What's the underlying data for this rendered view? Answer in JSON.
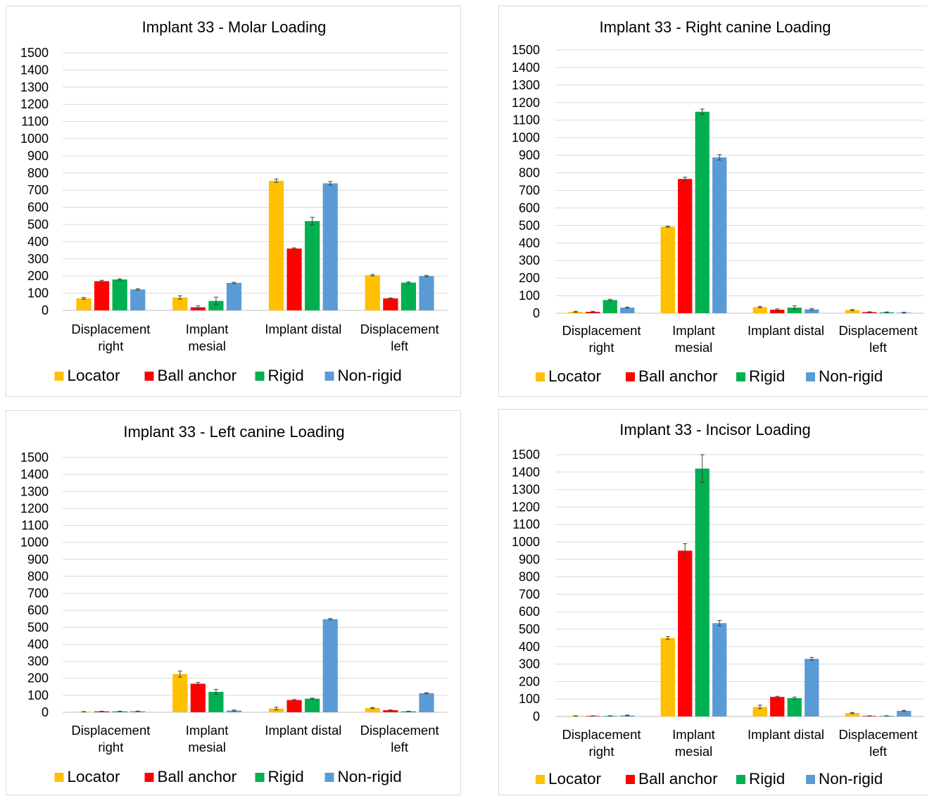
{
  "colors": {
    "Locator": "#ffc000",
    "Ball anchor": "#ff0000",
    "Rigid": "#00b050",
    "Non-rigid": "#5b9bd5"
  },
  "chart_data": [
    {
      "type": "bar",
      "title": "Implant 33 - Molar Loading",
      "categories": [
        [
          "Displacement",
          "right"
        ],
        [
          "Implant",
          "mesial"
        ],
        [
          "Implant distal"
        ],
        [
          "Displacement",
          "left"
        ]
      ],
      "ylim": [
        0,
        1500
      ],
      "yticks": [
        0,
        100,
        200,
        300,
        400,
        500,
        600,
        700,
        800,
        900,
        1000,
        1100,
        1200,
        1300,
        1400,
        1500
      ],
      "grid": true,
      "legend": "bottom",
      "series": [
        {
          "name": "Locator",
          "values": [
            70,
            75,
            755,
            205
          ],
          "errors": [
            5,
            10,
            10,
            4
          ]
        },
        {
          "name": "Ball anchor",
          "values": [
            170,
            18,
            360,
            70
          ],
          "errors": [
            5,
            8,
            4,
            3
          ]
        },
        {
          "name": "Rigid",
          "values": [
            180,
            55,
            520,
            162
          ],
          "errors": [
            4,
            22,
            22,
            5
          ]
        },
        {
          "name": "Non-rigid",
          "values": [
            122,
            160,
            740,
            200
          ],
          "errors": [
            4,
            4,
            10,
            4
          ]
        }
      ]
    },
    {
      "type": "bar",
      "title": "Implant 33 - Right canine Loading",
      "categories": [
        [
          "Displacement",
          "right"
        ],
        [
          "Implant",
          "mesial"
        ],
        [
          "Implant distal"
        ],
        [
          "Displacement",
          "left"
        ]
      ],
      "ylim": [
        0,
        1500
      ],
      "yticks": [
        0,
        100,
        200,
        300,
        400,
        500,
        600,
        700,
        800,
        900,
        1000,
        1100,
        1200,
        1300,
        1400,
        1500
      ],
      "grid": true,
      "legend": "bottom",
      "series": [
        {
          "name": "Locator",
          "values": [
            8,
            493,
            35,
            18
          ],
          "errors": [
            3,
            3,
            4,
            3
          ]
        },
        {
          "name": "Ball anchor",
          "values": [
            8,
            765,
            20,
            6
          ],
          "errors": [
            3,
            10,
            5,
            2
          ]
        },
        {
          "name": "Rigid",
          "values": [
            75,
            1148,
            32,
            5
          ],
          "errors": [
            4,
            15,
            10,
            2
          ]
        },
        {
          "name": "Non-rigid",
          "values": [
            32,
            888,
            22,
            3
          ],
          "errors": [
            3,
            15,
            5,
            2
          ]
        }
      ]
    },
    {
      "type": "bar",
      "title": "Implant 33 - Left canine Loading",
      "categories": [
        [
          "Displacement",
          "right"
        ],
        [
          "Implant",
          "mesial"
        ],
        [
          "Implant distal"
        ],
        [
          "Displacement",
          "left"
        ]
      ],
      "ylim": [
        0,
        1500
      ],
      "yticks": [
        0,
        100,
        200,
        300,
        400,
        500,
        600,
        700,
        800,
        900,
        1000,
        1100,
        1200,
        1300,
        1400,
        1500
      ],
      "grid": true,
      "legend": "bottom",
      "series": [
        {
          "name": "Locator",
          "values": [
            3,
            225,
            22,
            25
          ],
          "errors": [
            1,
            18,
            8,
            3
          ]
        },
        {
          "name": "Ball anchor",
          "values": [
            5,
            168,
            72,
            12
          ],
          "errors": [
            1,
            8,
            3,
            2
          ]
        },
        {
          "name": "Rigid",
          "values": [
            5,
            120,
            80,
            5
          ],
          "errors": [
            1,
            15,
            3,
            1
          ]
        },
        {
          "name": "Non-rigid",
          "values": [
            6,
            10,
            548,
            112
          ],
          "errors": [
            1,
            3,
            4,
            3
          ]
        }
      ]
    },
    {
      "type": "bar",
      "title": "Implant 33 - Incisor Loading",
      "categories": [
        [
          "Displacement",
          "right"
        ],
        [
          "Implant",
          "mesial"
        ],
        [
          "Implant distal"
        ],
        [
          "Displacement",
          "left"
        ]
      ],
      "ylim": [
        0,
        1500
      ],
      "yticks": [
        0,
        100,
        200,
        300,
        400,
        500,
        600,
        700,
        800,
        900,
        1000,
        1100,
        1200,
        1300,
        1400,
        1500
      ],
      "grid": true,
      "legend": "bottom",
      "series": [
        {
          "name": "Locator",
          "values": [
            3,
            450,
            55,
            20
          ],
          "errors": [
            1,
            8,
            10,
            3
          ]
        },
        {
          "name": "Ball anchor",
          "values": [
            3,
            950,
            112,
            3
          ],
          "errors": [
            1,
            40,
            4,
            1
          ]
        },
        {
          "name": "Rigid",
          "values": [
            3,
            1420,
            105,
            3
          ],
          "errors": [
            1,
            80,
            6,
            1
          ]
        },
        {
          "name": "Non-rigid",
          "values": [
            6,
            535,
            330,
            32
          ],
          "errors": [
            2,
            15,
            8,
            3
          ]
        }
      ]
    }
  ]
}
